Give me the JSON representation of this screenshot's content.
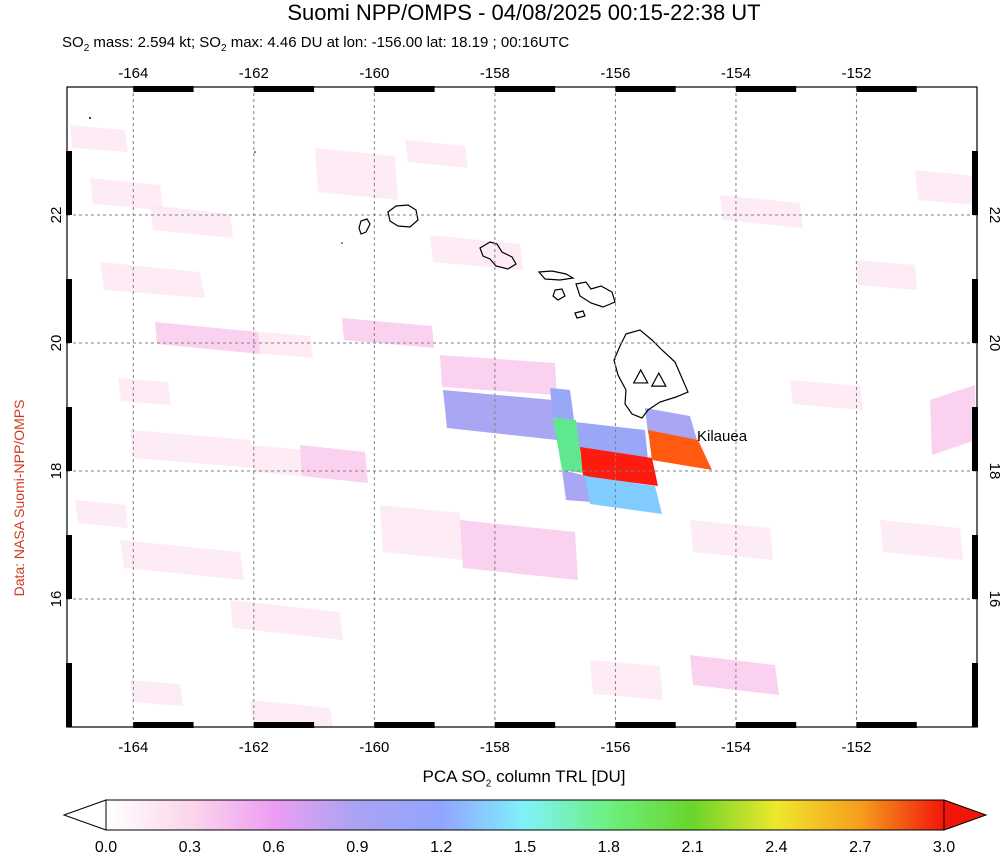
{
  "title": "Suomi NPP/OMPS - 04/08/2025 00:15-22:38 UT",
  "subtitle": {
    "mass_pre": "SO",
    "mass_sub": "2",
    "mass_post": " mass: 2.594 kt; SO",
    "max_sub": "2",
    "max_post": " max: 4.46 DU at lon: -156.00 lat: 18.19 ; 00:16UTC"
  },
  "side_credit": "Data: NASA Suomi-NPP/OMPS",
  "volcano_label": "Kilauea",
  "map": {
    "lon_range": [
      -165.1,
      -150.0
    ],
    "lat_range": [
      14.0,
      24.0
    ],
    "lon_ticks": [
      -164,
      -162,
      -160,
      -158,
      -156,
      -154,
      -152
    ],
    "lat_ticks": [
      16,
      18,
      20,
      22
    ],
    "lon_tick_labels": [
      "-164",
      "-162",
      "-160",
      "-158",
      "-156",
      "-154",
      "-152"
    ],
    "lat_tick_labels": [
      "16",
      "18",
      "20",
      "22"
    ],
    "volcanoes": [
      {
        "lon": -155.58,
        "lat": 19.47
      },
      {
        "lon": -155.28,
        "lat": 19.42
      }
    ]
  },
  "colorbar": {
    "title_pre": "PCA SO",
    "title_sub": "2",
    "title_post": " column TRL [DU]",
    "tick_labels": [
      "0.0",
      "0.3",
      "0.6",
      "0.9",
      "1.2",
      "1.5",
      "1.8",
      "2.1",
      "2.4",
      "2.7",
      "3.0"
    ],
    "colors": {
      "c00": "#ffffff",
      "c03": "#fcd6ec",
      "c06": "#ec9ef2",
      "c09": "#a9a3f2",
      "c12": "#92a4ff",
      "c15": "#7ff2fa",
      "c18": "#6cf080",
      "c21": "#6ad52b",
      "c24": "#efe72c",
      "c27": "#f59e1e",
      "c30": "#f2160a"
    }
  },
  "colors": {
    "high": "#ff1a10",
    "orange": "#ff5a10",
    "light_blue": "#80ccff",
    "purple": "#a9a6f4",
    "green": "#60e890",
    "blue_purple": "#9aa6f6",
    "light_pink": "#fce6f2",
    "pink": "#fad2f0",
    "frame": "#000000"
  }
}
